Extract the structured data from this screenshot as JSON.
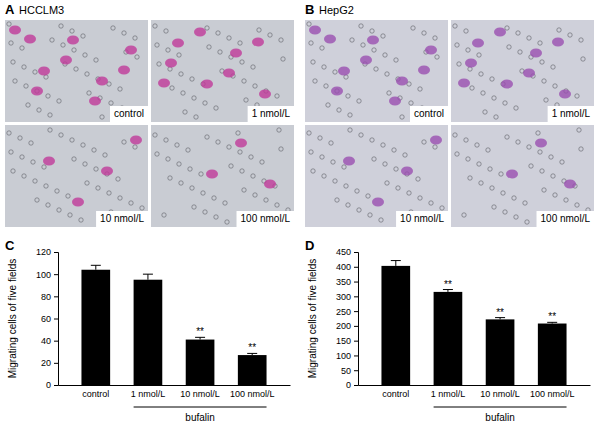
{
  "image_panels": [
    {
      "panel_label": "A",
      "title": "HCCLM3",
      "conditions": [
        "control",
        "1 nmol/L",
        "10 nmol/L",
        "100 nmol/L"
      ]
    },
    {
      "panel_label": "B",
      "title": "HepG2",
      "conditions": [
        "control",
        "1 nmol/L",
        "10 nmol/L",
        "100 nmol/L"
      ]
    }
  ],
  "chart_data": [
    {
      "type": "bar",
      "panel_label": "C",
      "y_label": "Migrating cells of five fields",
      "categories": [
        "control",
        "1 nmol/L",
        "10 nmol/L",
        "100 nmol/L"
      ],
      "values": [
        104,
        95,
        41,
        27
      ],
      "errors": [
        4,
        5,
        2,
        1.5
      ],
      "significance": [
        null,
        null,
        "**",
        "**"
      ],
      "group_label": "bufalin",
      "color": "#000000",
      "ylim": [
        0,
        120
      ],
      "yticks": [
        0,
        20,
        40,
        60,
        80,
        100,
        120
      ]
    },
    {
      "type": "bar",
      "panel_label": "D",
      "y_label": "Migrating cells of five fields",
      "categories": [
        "control",
        "1 nmol/L",
        "10 nmol/L",
        "100 nmol/L"
      ],
      "values": [
        403,
        315,
        222,
        208
      ],
      "errors": [
        18,
        8,
        6,
        4
      ],
      "significance": [
        null,
        "**",
        "**",
        "**"
      ],
      "group_label": "bufalin",
      "color": "#000000",
      "ylim": [
        0,
        450
      ],
      "yticks": [
        0,
        50,
        100,
        150,
        200,
        250,
        300,
        350,
        400,
        450
      ]
    }
  ]
}
